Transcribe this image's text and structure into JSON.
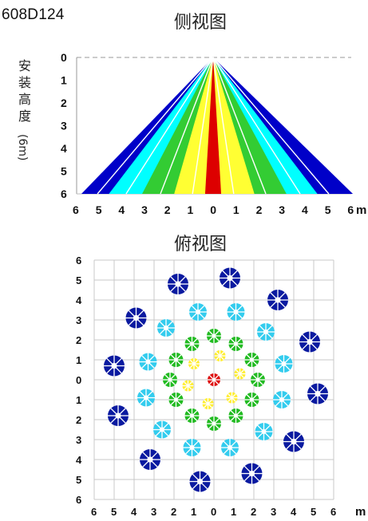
{
  "model": "608D124",
  "side_view": {
    "title": "侧视图",
    "y_label": "安装高度",
    "y_label_unit": "(6m)",
    "y_ticks": [
      "0",
      "1",
      "2",
      "3",
      "4",
      "5",
      "6"
    ],
    "x_ticks": [
      "6",
      "5",
      "4",
      "3",
      "2",
      "1",
      "0",
      "1",
      "2",
      "3",
      "4",
      "5",
      "6"
    ],
    "x_unit": "m",
    "height_m": 6,
    "beams": [
      {
        "color": "#0000c8",
        "left_m": 5.75,
        "right_m": 6.1
      },
      {
        "color": "#00ffff",
        "left_m": 4.55,
        "right_m": 4.55
      },
      {
        "color": "#33cc33",
        "left_m": 3.1,
        "right_m": 3.2
      },
      {
        "color": "#ffff33",
        "left_m": 1.7,
        "right_m": 1.8
      },
      {
        "color": "#dd0000",
        "left_m": 0.35,
        "right_m": 0.35
      }
    ]
  },
  "top_view": {
    "title": "俯视图",
    "y_ticks": [
      "6",
      "5",
      "4",
      "3",
      "2",
      "1",
      "0",
      "1",
      "2",
      "3",
      "4",
      "5",
      "6"
    ],
    "x_ticks": [
      "6",
      "5",
      "4",
      "3",
      "2",
      "1",
      "0",
      "1",
      "2",
      "3",
      "4",
      "5",
      "6"
    ],
    "x_unit": "m",
    "zones": [
      {
        "name": "red",
        "color": "#dd1111",
        "points": [
          [
            0,
            0
          ]
        ]
      },
      {
        "name": "yellow",
        "color": "#ffee33",
        "points": [
          [
            0.3,
            1.2
          ],
          [
            1.3,
            0.3
          ],
          [
            0.9,
            -0.9
          ],
          [
            -0.3,
            -1.2
          ],
          [
            -1.3,
            -0.3
          ],
          [
            -1.0,
            0.8
          ]
        ]
      },
      {
        "name": "green",
        "color": "#22bb22",
        "points": [
          [
            -1.1,
            1.8
          ],
          [
            0,
            2.2
          ],
          [
            1.1,
            1.8
          ],
          [
            1.9,
            1.0
          ],
          [
            2.2,
            0
          ],
          [
            1.9,
            -1.0
          ],
          [
            1.1,
            -1.8
          ],
          [
            0,
            -2.2
          ],
          [
            -1.1,
            -1.8
          ],
          [
            -1.9,
            -1.0
          ],
          [
            -2.2,
            0
          ],
          [
            -1.9,
            1.0
          ]
        ]
      },
      {
        "name": "cyan",
        "color": "#33ccee",
        "points": [
          [
            -0.8,
            3.4
          ],
          [
            1.1,
            3.4
          ],
          [
            2.6,
            2.4
          ],
          [
            3.5,
            0.8
          ],
          [
            3.4,
            -1.0
          ],
          [
            2.5,
            -2.6
          ],
          [
            0.8,
            -3.4
          ],
          [
            -1.1,
            -3.4
          ],
          [
            -2.6,
            -2.5
          ],
          [
            -3.4,
            -0.9
          ],
          [
            -3.3,
            0.9
          ],
          [
            -2.4,
            2.6
          ]
        ]
      },
      {
        "name": "blue",
        "color": "#0a1aa0",
        "points": [
          [
            -1.8,
            4.8
          ],
          [
            0.8,
            5.1
          ],
          [
            3.2,
            4.0
          ],
          [
            4.8,
            1.9
          ],
          [
            5.2,
            -0.7
          ],
          [
            4.0,
            -3.1
          ],
          [
            1.9,
            -4.7
          ],
          [
            -0.7,
            -5.1
          ],
          [
            -3.2,
            -4.0
          ],
          [
            -4.8,
            -1.8
          ],
          [
            -5.0,
            0.7
          ],
          [
            -3.9,
            3.1
          ]
        ]
      }
    ]
  }
}
